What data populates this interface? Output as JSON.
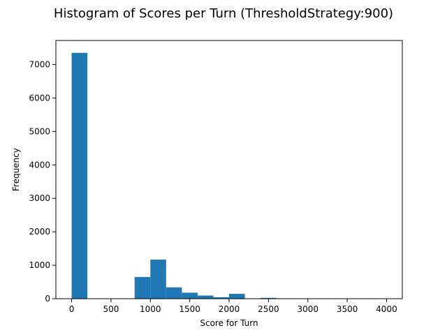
{
  "chart_data": {
    "type": "bar",
    "title": "Histogram of Scores per Turn (ThresholdStrategy:900)",
    "xlabel": "Score for Turn",
    "ylabel": "Frequency",
    "xlim": [
      -200,
      4200
    ],
    "ylim": [
      0,
      7720
    ],
    "x_ticks": [
      0,
      500,
      1000,
      1500,
      2000,
      2500,
      3000,
      3500,
      4000
    ],
    "y_ticks": [
      0,
      1000,
      2000,
      3000,
      4000,
      5000,
      6000,
      7000
    ],
    "bar_color": "#1f77b4",
    "bins": [
      {
        "start": 0,
        "end": 200,
        "count": 7350
      },
      {
        "start": 200,
        "end": 400,
        "count": 0
      },
      {
        "start": 400,
        "end": 600,
        "count": 0
      },
      {
        "start": 600,
        "end": 800,
        "count": 0
      },
      {
        "start": 800,
        "end": 1000,
        "count": 650
      },
      {
        "start": 1000,
        "end": 1200,
        "count": 1170
      },
      {
        "start": 1200,
        "end": 1400,
        "count": 340
      },
      {
        "start": 1400,
        "end": 1600,
        "count": 180
      },
      {
        "start": 1600,
        "end": 1800,
        "count": 95
      },
      {
        "start": 1800,
        "end": 2000,
        "count": 45
      },
      {
        "start": 2000,
        "end": 2200,
        "count": 145
      },
      {
        "start": 2200,
        "end": 2400,
        "count": 5
      },
      {
        "start": 2400,
        "end": 2600,
        "count": 25
      },
      {
        "start": 2600,
        "end": 2800,
        "count": 4
      },
      {
        "start": 2800,
        "end": 3000,
        "count": 3
      },
      {
        "start": 3000,
        "end": 3200,
        "count": 2
      },
      {
        "start": 3200,
        "end": 3400,
        "count": 1
      },
      {
        "start": 3400,
        "end": 3600,
        "count": 1
      },
      {
        "start": 3600,
        "end": 3800,
        "count": 1
      },
      {
        "start": 3800,
        "end": 4000,
        "count": 1
      }
    ]
  }
}
